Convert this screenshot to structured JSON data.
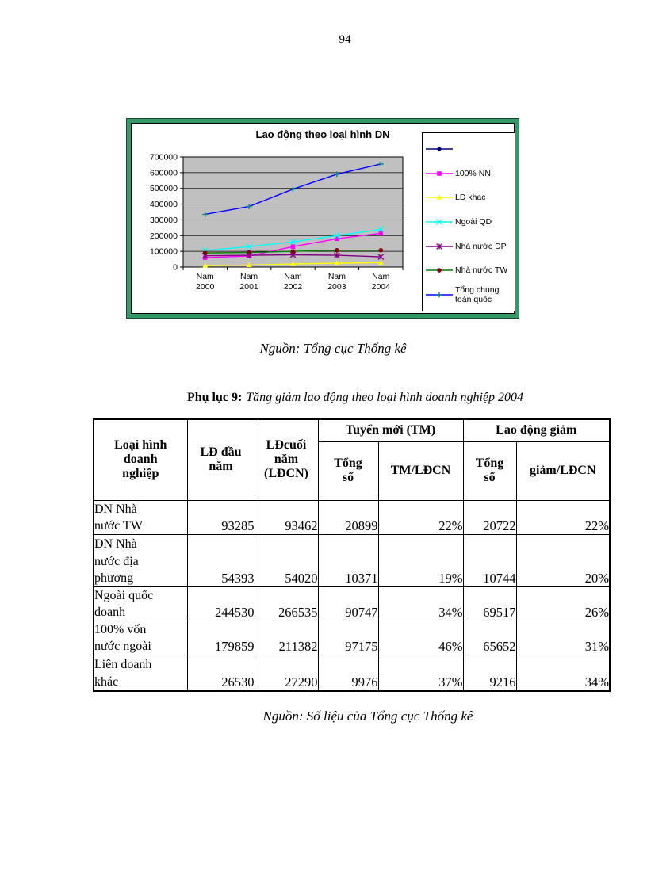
{
  "page": {
    "number": "94"
  },
  "chart_data": {
    "type": "line",
    "title": "Lao động theo loại hình DN",
    "categories": [
      "Nam 2000",
      "Nam 2001",
      "Nam 2002",
      "Nam 2003",
      "Nam 2004"
    ],
    "xlabel": "",
    "ylabel": "",
    "ylim": [
      0,
      700000
    ],
    "yticks": [
      "700000",
      "600000",
      "500000",
      "400000",
      "300000",
      "200000",
      "100000",
      "0"
    ],
    "grid": "horizontal",
    "plot_bg": "#c0c0c0",
    "frame_color": "#339966",
    "legend_position": "right",
    "series": [
      {
        "name": "",
        "values": [],
        "line": "#000080",
        "marker": "diamond",
        "marker_color": "#000080"
      },
      {
        "name": "100% NN",
        "values": [
          60000,
          70000,
          130000,
          180000,
          215000
        ],
        "line": "#ff00ff",
        "marker": "square",
        "marker_color": "#ff00ff"
      },
      {
        "name": "LD khac",
        "values": [
          10000,
          13000,
          20000,
          25000,
          28000
        ],
        "line": "#ffff00",
        "marker": "triangle",
        "marker_color": "#ffff00"
      },
      {
        "name": "Ngoài QD",
        "values": [
          105000,
          130000,
          160000,
          200000,
          240000
        ],
        "line": "#00ffff",
        "marker": "x",
        "marker_color": "#00ffff"
      },
      {
        "name": "Nhà nước ĐP",
        "values": [
          72000,
          75000,
          78000,
          75000,
          65000
        ],
        "line": "#800080",
        "marker": "asterisk",
        "marker_color": "#800080"
      },
      {
        "name": "Nhà nước TW",
        "values": [
          90000,
          93000,
          100000,
          107000,
          107000
        ],
        "line": "#008000",
        "marker": "circle",
        "marker_color": "#800000"
      },
      {
        "name": "Tổng chung toàn quốc",
        "values": [
          335000,
          385000,
          495000,
          590000,
          655000
        ],
        "line": "#0000ff",
        "marker": "plus",
        "marker_color": "#008080"
      }
    ]
  },
  "captions": {
    "chart_source": "Nguồn: Tổng cục Thống kê",
    "table_source": "Nguồn: Số liệu của Tổng cục Thống kê"
  },
  "table": {
    "title_prefix": "Phụ lục 9:",
    "title_text": "Tăng giảm lao động theo loại hình doanh nghiệp 2004",
    "headers": {
      "col1": "Loại hình doanh nghiệp",
      "col2": "LĐ đầu năm",
      "col3": "LĐcuối năm (LĐCN)",
      "group_tm": "Tuyển mới (TM)",
      "group_giam": "Lao động giảm",
      "tm_tong_so": "Tổng\nsố",
      "tm_ldcn": "TM/LĐCN",
      "giam_tong_so": "Tổng\nsố",
      "giam_ldcn": "giảm/LĐCN"
    },
    "rows": [
      {
        "cells": [
          "DN Nhà nước TW",
          "93285",
          "93462",
          "20899",
          "22%",
          "20722",
          "22%"
        ]
      },
      {
        "cells": [
          "DN Nhà nước địa phương",
          "54393",
          "54020",
          "10371",
          "19%",
          "10744",
          "20%"
        ]
      },
      {
        "cells": [
          "Ngoài quốc doanh",
          "244530",
          "266535",
          "90747",
          "34%",
          "69517",
          "26%"
        ]
      },
      {
        "cells": [
          "100% vốn nước ngoài",
          "179859",
          "211382",
          "97175",
          "46%",
          "65652",
          "31%"
        ]
      },
      {
        "cells": [
          "Liên doanh khác",
          "26530",
          "27290",
          "9976",
          "37%",
          "9216",
          "34%"
        ]
      }
    ]
  }
}
